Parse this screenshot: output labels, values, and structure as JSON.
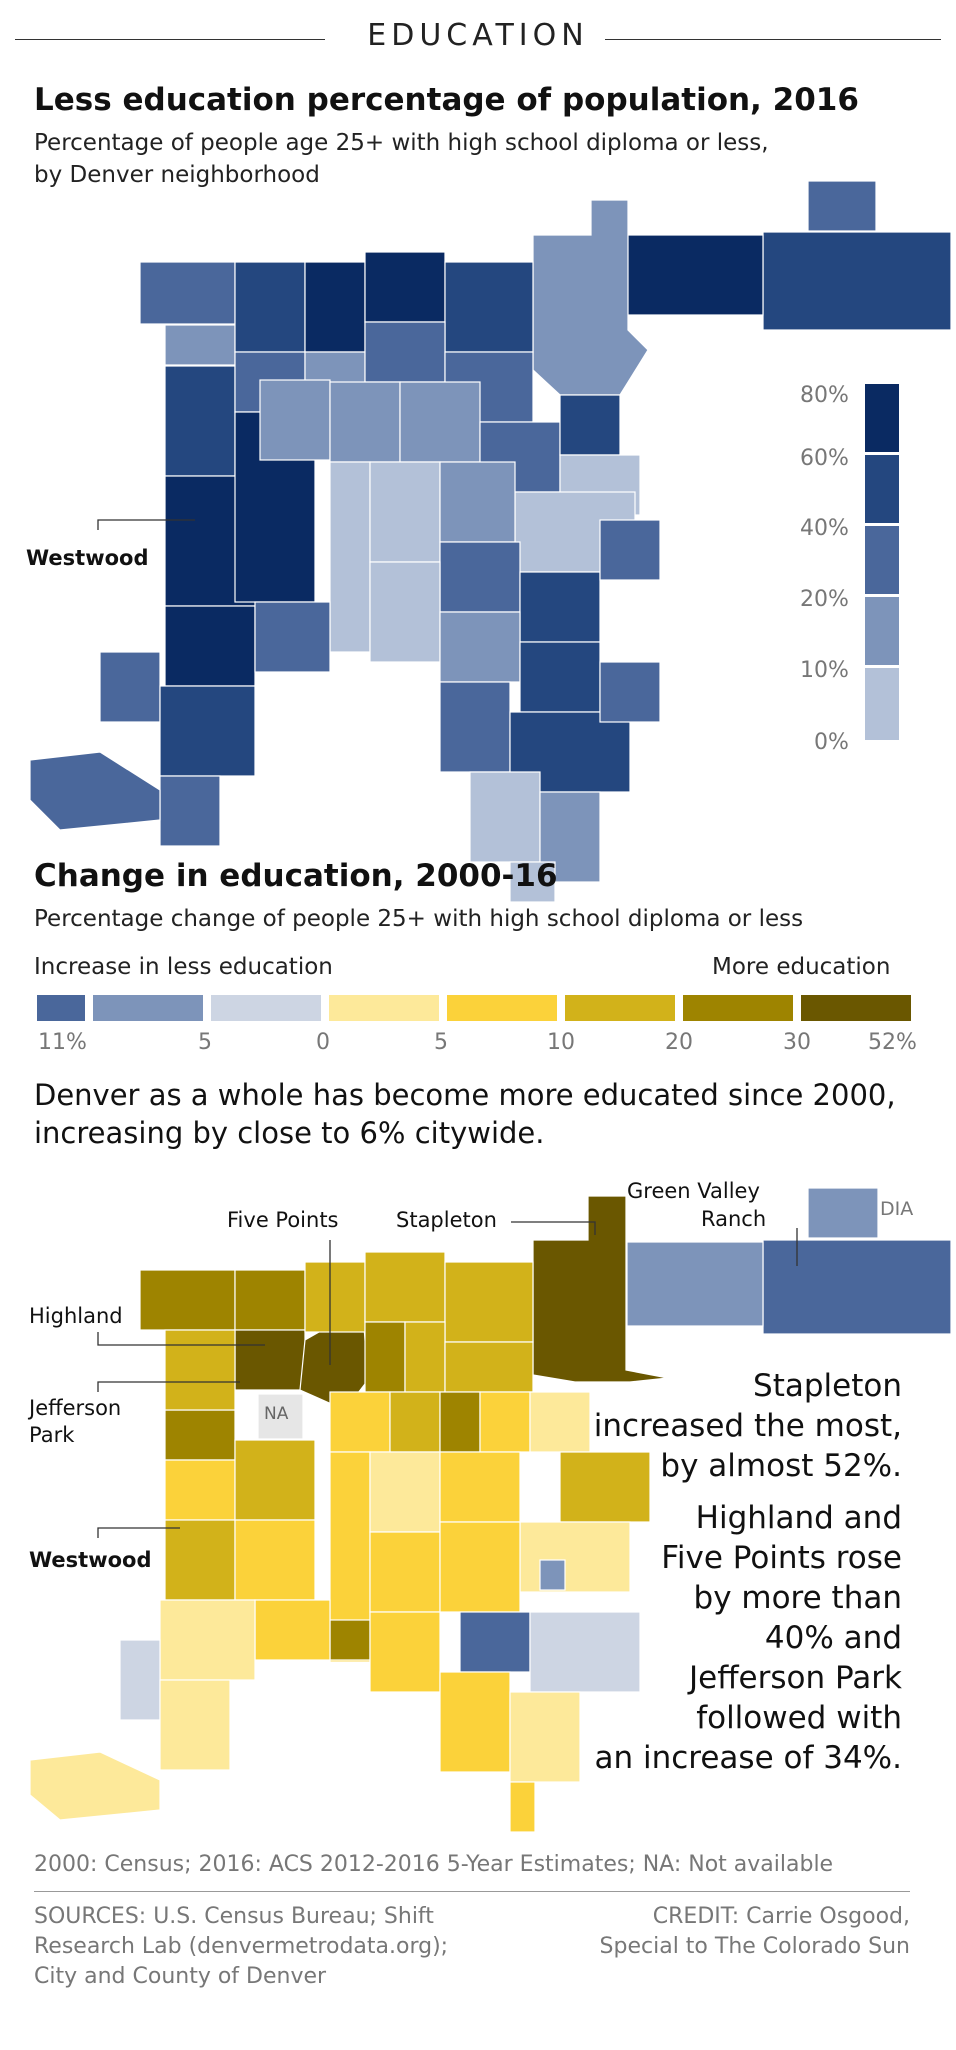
{
  "header": {
    "section": "EDUCATION"
  },
  "map1": {
    "title": "Less education percentage of population, 2016",
    "subtitle_line1": "Percentage of people age 25+ with high school diploma or less,",
    "subtitle_line2": "by Denver neighborhood",
    "callout_westwood": "Westwood",
    "legend": {
      "labels": [
        "80%",
        "60%",
        "40%",
        "20%",
        "10%",
        "0%"
      ],
      "colors": [
        "#0a2a62",
        "#24477f",
        "#4a679b",
        "#7d94ba",
        "#b3c1d8"
      ]
    }
  },
  "map2": {
    "title": "Change in education, 2000-16",
    "subtitle": "Percentage change of people 25+ with high school diploma or less",
    "legend": {
      "left_label": "Increase in less education",
      "right_label": "More education",
      "colors": [
        "#4a679b",
        "#7d94ba",
        "#cdd5e3",
        "#fde99a",
        "#fbd23a",
        "#d2b21a",
        "#9e8400",
        "#6a5700"
      ],
      "ticks": [
        "11%",
        "5",
        "0",
        "5",
        "10",
        "20",
        "30",
        "52%"
      ]
    },
    "summary_line1": "Denver as a whole has become more educated since 2000,",
    "summary_line2": "increasing by close to 6% citywide.",
    "callouts": {
      "five_points": "Five Points",
      "stapleton": "Stapleton",
      "green_valley_1": "Green Valley",
      "green_valley_2": "Ranch",
      "dia": "DIA",
      "highland": "Highland",
      "jefferson_1": "Jefferson",
      "jefferson_2": "Park",
      "na": "NA",
      "westwood": "Westwood"
    },
    "notes": {
      "stapleton": [
        "Stapleton",
        "increased the most,",
        "by almost 52%."
      ],
      "highland": [
        "Highland and",
        "Five Points rose",
        "by more than",
        "40% and",
        "Jefferson Park",
        "followed with",
        "an increase of 34%."
      ]
    }
  },
  "footer": {
    "note": "2000: Census; 2016: ACS 2012-2016 5-Year Estimates; NA: Not available",
    "sources": [
      "SOURCES: U.S. Census Bureau; Shift",
      "Research Lab (denvermetrodata.org);",
      "City and County of Denver"
    ],
    "credit": [
      "CREDIT: Carrie Osgood,",
      "Special to The Colorado Sun"
    ]
  }
}
